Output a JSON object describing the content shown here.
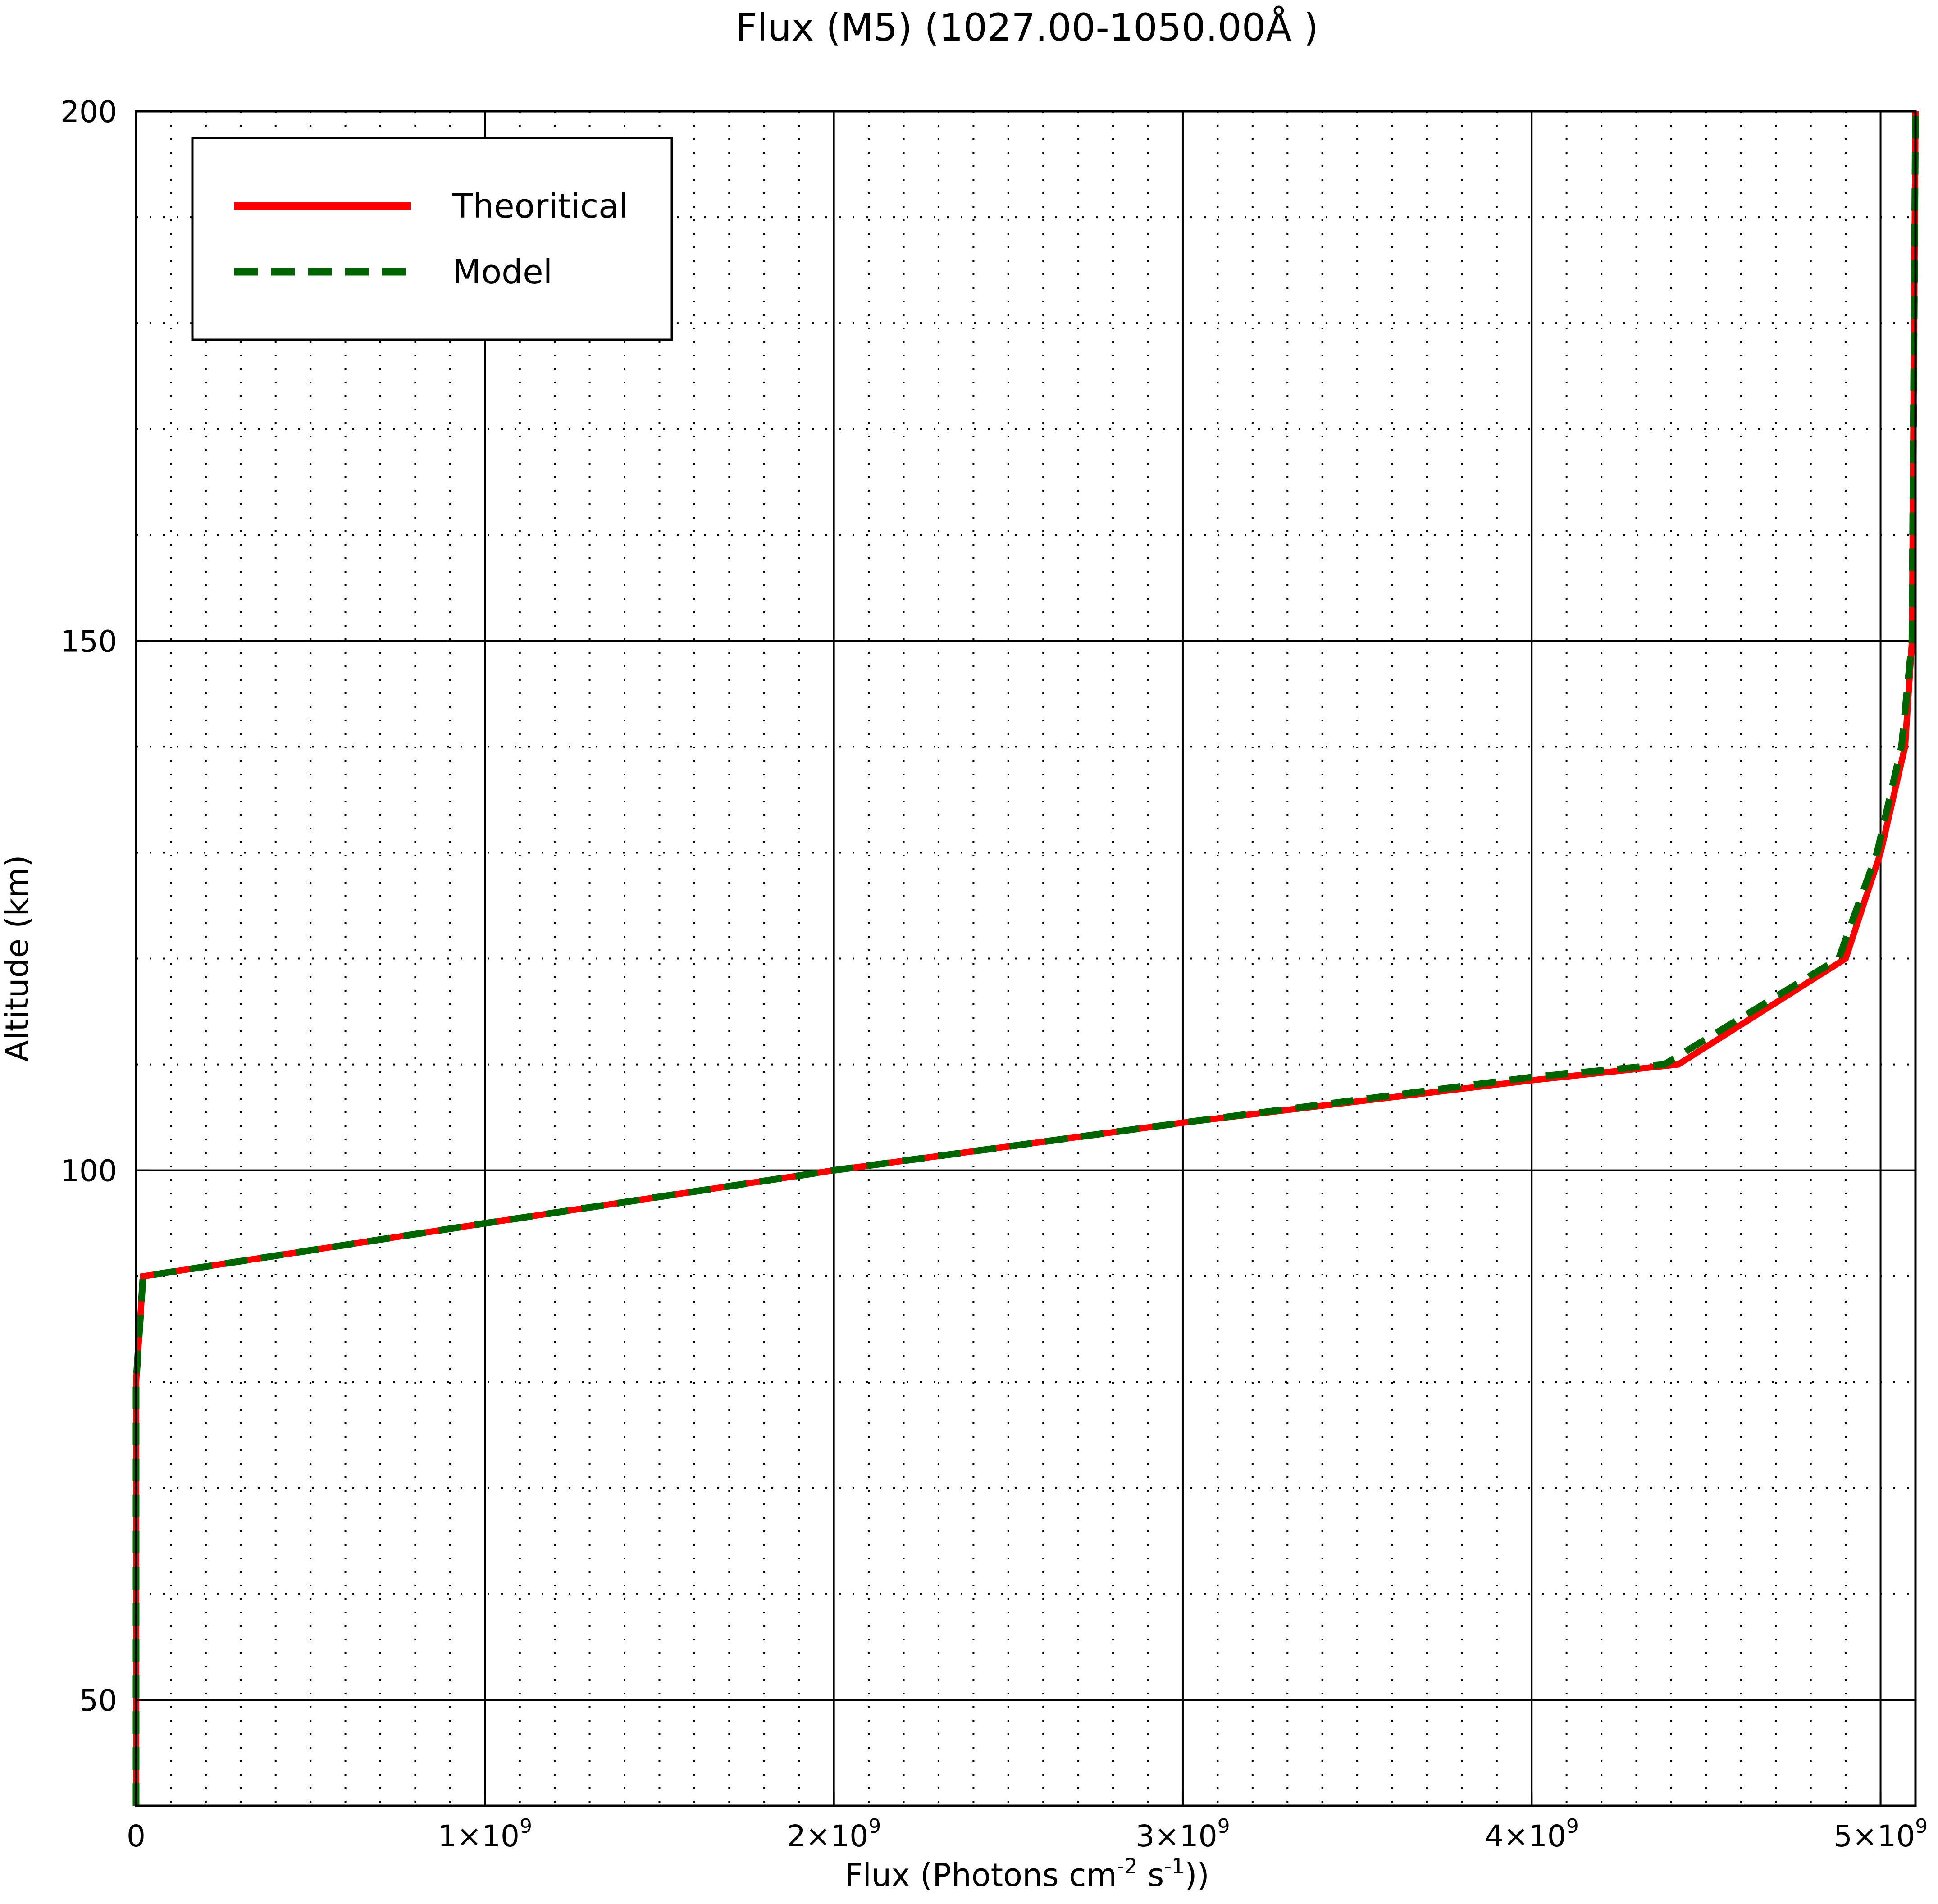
{
  "chart_data": {
    "type": "line",
    "title": "Flux (M5) (1027.00-1050.00Å )",
    "xlabel": {
      "prefix": "Flux (Photons cm",
      "exp1": "-2",
      "mid": " s",
      "exp2": "-1",
      "suffix": "))"
    },
    "ylabel": "Altitude (km)",
    "xlim": [
      0,
      5100000000
    ],
    "ylim": [
      40,
      200
    ],
    "x_ticks": [
      {
        "value": 0,
        "base": "0",
        "exp": ""
      },
      {
        "value": 1000000000,
        "base": "1×10",
        "exp": "9"
      },
      {
        "value": 2000000000,
        "base": "2×10",
        "exp": "9"
      },
      {
        "value": 3000000000,
        "base": "3×10",
        "exp": "9"
      },
      {
        "value": 4000000000,
        "base": "4×10",
        "exp": "9"
      },
      {
        "value": 5000000000,
        "base": "5×10",
        "exp": "9"
      }
    ],
    "y_ticks": [
      {
        "value": 50,
        "label": "50"
      },
      {
        "value": 100,
        "label": "100"
      },
      {
        "value": 150,
        "label": "150"
      },
      {
        "value": 200,
        "label": "200"
      }
    ],
    "grid": {
      "major": true,
      "minor": true,
      "minor_style": "dotted"
    },
    "legend_position": "top-left",
    "series": [
      {
        "name": "Theoritical",
        "color": "#ff0000",
        "style": "solid",
        "x": [
          0,
          0,
          20000000,
          1000000000,
          2000000000,
          3000000000,
          4000000000,
          4420000000,
          4900000000,
          5000000000,
          5070000000,
          5090000000,
          5100000000
        ],
        "y": [
          40,
          80,
          90,
          95,
          100,
          104.5,
          108.5,
          110,
          120,
          130,
          140,
          150,
          200
        ]
      },
      {
        "name": "Model",
        "color": "#006400",
        "style": "dashed",
        "x": [
          0,
          0,
          20000000,
          1000000000,
          2000000000,
          3000000000,
          4000000000,
          4380000000,
          4880000000,
          4990000000,
          5060000000,
          5090000000,
          5100000000
        ],
        "y": [
          40,
          80,
          90,
          95,
          100,
          104.5,
          108.8,
          110,
          120,
          130,
          140,
          150,
          200
        ]
      }
    ]
  }
}
